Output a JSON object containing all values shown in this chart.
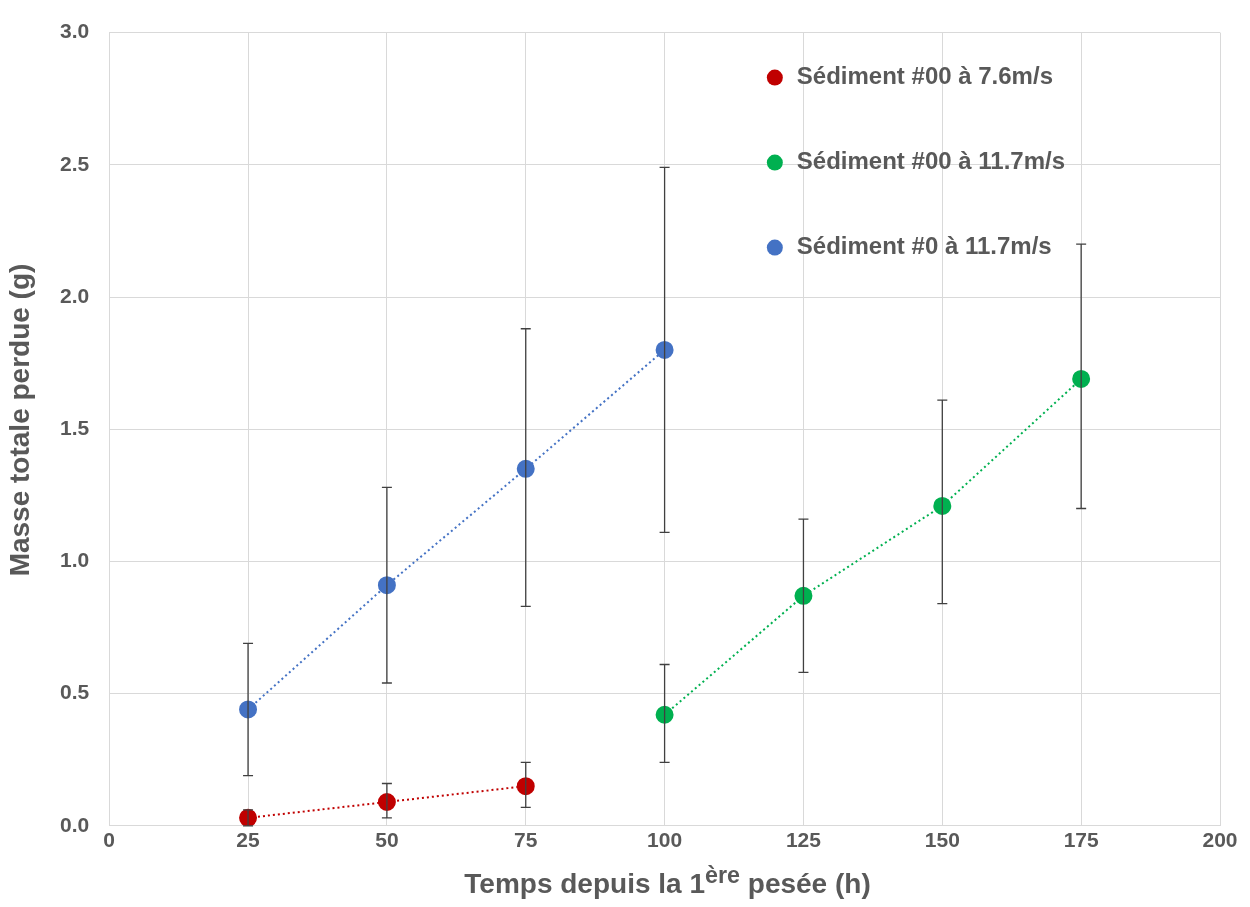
{
  "chart_data": {
    "type": "line",
    "xlabel": "Temps depuis la 1$^{ère}$ pesée (h)",
    "ylabel": "Masse totale perdue (g)",
    "xlim": [
      0,
      200
    ],
    "xticks": [
      0,
      25,
      50,
      75,
      100,
      125,
      150,
      175,
      200
    ],
    "ylim": [
      0,
      3.0
    ],
    "yticks": [
      {
        "value": 0,
        "label": "0.0"
      },
      {
        "value": 0.5,
        "label": "0.5"
      },
      {
        "value": 1,
        "label": "1.0"
      },
      {
        "value": 1.5,
        "label": "1.5"
      },
      {
        "value": 2,
        "label": "2.0"
      },
      {
        "value": 2.5,
        "label": "2.5"
      },
      {
        "value": 3,
        "label": "3.0"
      }
    ],
    "grid": true,
    "legend": "top right",
    "marker": "circle",
    "line_style": "dotted",
    "series": [
      {
        "name": "Sédiment #00 à 7.6m/s",
        "color": "#c00000",
        "x": [
          25,
          50,
          75
        ],
        "values": [
          0.03,
          0.09,
          0.15
        ],
        "errors": [
          [
            0.0,
            0.06
          ],
          [
            0.03,
            0.16
          ],
          [
            0.07,
            0.24
          ]
        ]
      },
      {
        "name": "Sédiment #00 à 11.7m/s",
        "color": "#00b050",
        "x": [
          100,
          125,
          150,
          175
        ],
        "values": [
          0.42,
          0.87,
          1.21,
          1.69
        ],
        "errors": [
          [
            0.24,
            0.61
          ],
          [
            0.58,
            1.16
          ],
          [
            0.84,
            1.61
          ],
          [
            1.2,
            2.2
          ]
        ]
      },
      {
        "name": "Sédiment #0 à 11.7m/s",
        "color": "#4472c4",
        "x": [
          25,
          50,
          75,
          100
        ],
        "values": [
          0.44,
          0.91,
          1.35,
          1.8
        ],
        "errors": [
          [
            0.19,
            0.69
          ],
          [
            0.54,
            1.28
          ],
          [
            0.83,
            1.88
          ],
          [
            1.11,
            2.49
          ]
        ]
      }
    ]
  }
}
